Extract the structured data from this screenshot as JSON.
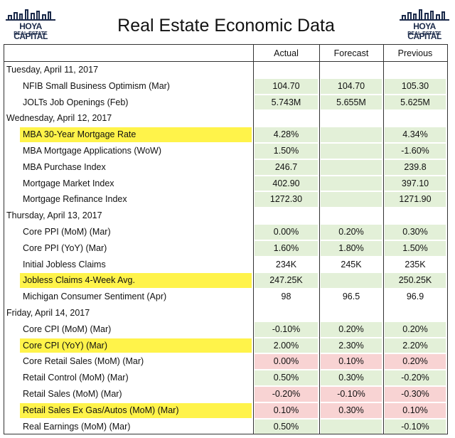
{
  "header": {
    "title": "Real Estate Economic Data",
    "logo_left": {
      "name": "HOYA CAPITAL",
      "sub": "REAL ESTATE"
    },
    "logo_right": {
      "name": "HOYA CAPITAL",
      "sub": "REAL ESTATE"
    }
  },
  "table": {
    "columns": [
      "Actual",
      "Forecast",
      "Previous"
    ],
    "sections": [
      {
        "date": "Tuesday, April 11, 2017",
        "rows": [
          {
            "label": "NFIB Small Business Optimism (Mar)",
            "values": [
              "104.70",
              "104.70",
              "105.30"
            ],
            "fill": "#e3f0d8"
          },
          {
            "label": "JOLTs Job Openings (Feb)",
            "values": [
              "5.743M",
              "5.655M",
              "5.625M"
            ],
            "fill": "#e3f0d8"
          }
        ]
      },
      {
        "date": "Wednesday, April 12, 2017",
        "rows": [
          {
            "label": "MBA 30-Year Mortgage Rate",
            "values": [
              "4.28%",
              null,
              "4.34%"
            ],
            "fill": "#e3f0d8",
            "highlight": "#fff34a"
          },
          {
            "label": "MBA Mortgage Applications (WoW)",
            "values": [
              "1.50%",
              null,
              "-1.60%"
            ],
            "fill": "#e3f0d8"
          },
          {
            "label": "MBA Purchase Index",
            "values": [
              "246.7",
              null,
              "239.8"
            ],
            "fill": "#e3f0d8"
          },
          {
            "label": "Mortgage Market Index",
            "values": [
              "402.90",
              null,
              "397.10"
            ],
            "fill": "#e3f0d8"
          },
          {
            "label": "Mortgage Refinance Index",
            "values": [
              "1272.30",
              null,
              "1271.90"
            ],
            "fill": "#e3f0d8"
          }
        ]
      },
      {
        "date": "Thursday, April 13, 2017",
        "rows": [
          {
            "label": "Core PPI (MoM) (Mar)",
            "values": [
              "0.00%",
              "0.20%",
              "0.30%"
            ],
            "fill": "#e3f0d8"
          },
          {
            "label": "Core PPI (YoY) (Mar)",
            "values": [
              "1.60%",
              "1.80%",
              "1.50%"
            ],
            "fill": "#e3f0d8"
          },
          {
            "label": "Initial Jobless Claims",
            "values": [
              "234K",
              "245K",
              "235K"
            ],
            "fill": "#ffffff"
          },
          {
            "label": "Jobless Claims 4-Week Avg.",
            "values": [
              "247.25K",
              null,
              "250.25K"
            ],
            "fill": "#e3f0d8",
            "highlight": "#fff34a"
          },
          {
            "label": "Michigan Consumer Sentiment (Apr)",
            "values": [
              "98",
              "96.5",
              "96.9"
            ],
            "fill": "#ffffff"
          }
        ]
      },
      {
        "date": "Friday, April 14, 2017",
        "rows": [
          {
            "label": "Core CPI (MoM) (Mar)",
            "values": [
              "-0.10%",
              "0.20%",
              "0.20%"
            ],
            "fill": "#e3f0d8"
          },
          {
            "label": "Core CPI (YoY) (Mar)",
            "values": [
              "2.00%",
              "2.30%",
              "2.20%"
            ],
            "fill": "#e3f0d8",
            "highlight": "#fff34a"
          },
          {
            "label": "Core Retail Sales (MoM) (Mar)",
            "values": [
              "0.00%",
              "0.10%",
              "0.20%"
            ],
            "fill": "#f8d3d3"
          },
          {
            "label": "Retail Control (MoM) (Mar)",
            "values": [
              "0.50%",
              "0.30%",
              "-0.20%"
            ],
            "fill": "#e3f0d8"
          },
          {
            "label": "Retail Sales (MoM) (Mar)",
            "values": [
              "-0.20%",
              "-0.10%",
              "-0.30%"
            ],
            "fill": "#f8d3d3"
          },
          {
            "label": "Retail Sales Ex Gas/Autos (MoM) (Mar)",
            "values": [
              "0.10%",
              "0.30%",
              "0.10%"
            ],
            "fill": "#f8d3d3",
            "highlight": "#fff34a"
          },
          {
            "label": "Real Earnings (MoM) (Mar)",
            "values": [
              "0.50%",
              null,
              "-0.10%"
            ],
            "fill": "#e3f0d8"
          }
        ]
      }
    ]
  }
}
